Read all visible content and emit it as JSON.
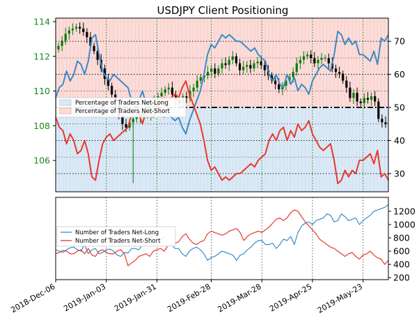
{
  "colors": {
    "long": "#3a8bc8",
    "short": "#e8382c",
    "long_fill": "#dbe9f6",
    "short_fill": "#fbdcd9",
    "price_up": "#0a7d0a",
    "price_down": "#000000",
    "left_axis_text": "#1a8a1a",
    "grid_dot": "#1a8a1a",
    "grid_black": "#000000"
  },
  "chart_data": [
    {
      "type": "line",
      "title": "USDJPY Client Positioning",
      "yaxis_left": {
        "ticks": [
          106,
          108,
          110,
          112,
          114
        ],
        "range": [
          104.2,
          114.2
        ]
      },
      "yaxis_right": {
        "ticks": [
          30,
          40,
          50,
          60,
          70
        ],
        "range": [
          24.5,
          77
        ]
      },
      "x_ticks": [
        "2018-Dec-06",
        "2019-Jan-03",
        "2019-Jan-31",
        "2019-Feb-28",
        "2019-Mar-28",
        "2019-Apr-25",
        "2019-May-23"
      ],
      "reference_line": 50,
      "legend": [
        "Percentage of Traders Net-Long",
        "Percentage of Traders Net-Short"
      ],
      "legend_position": "middle-left",
      "price_candles_close": [
        112.6,
        112.9,
        113.3,
        113.5,
        113.6,
        113.7,
        113.6,
        113.4,
        113.1,
        112.6,
        112.3,
        111.8,
        111.3,
        110.7,
        110.3,
        109.8,
        109.2,
        108.6,
        108.1,
        107.9,
        108.2,
        108.4,
        108.5,
        108.7,
        108.6,
        108.6,
        108.9,
        109.4,
        109.7,
        109.9,
        110.1,
        110.2,
        109.8,
        109.5,
        109.3,
        109.7,
        109.6,
        110.0,
        110.2,
        110.6,
        110.8,
        110.9,
        111.1,
        111.3,
        111.0,
        111.3,
        111.6,
        111.5,
        111.8,
        112.0,
        111.6,
        111.2,
        111.4,
        111.5,
        111.3,
        111.6,
        111.7,
        111.5,
        111.2,
        110.9,
        110.6,
        110.4,
        110.1,
        110.3,
        110.6,
        110.8,
        111.1,
        111.6,
        111.8,
        112.0,
        112.1,
        111.9,
        111.6,
        111.8,
        111.9,
        111.9,
        111.6,
        111.3,
        111.1,
        111.0,
        110.6,
        110.2,
        109.6,
        109.9,
        109.4,
        109.3,
        109.6,
        109.5,
        109.7,
        109.4,
        108.4,
        108.2,
        108.1
      ],
      "series": [
        {
          "name": "Percentage of Traders Net-Long",
          "values": [
            53,
            56,
            57,
            61,
            58,
            60,
            64,
            63,
            60,
            64,
            71,
            72,
            66,
            61,
            59,
            58,
            60,
            59,
            58,
            57,
            56,
            52,
            51,
            52,
            55,
            51,
            52,
            53,
            50,
            48,
            47,
            48,
            47,
            46,
            47,
            44,
            42,
            46,
            49,
            52,
            55,
            60,
            66,
            69,
            68,
            70,
            72,
            71,
            72,
            71,
            70,
            70,
            69,
            68,
            67,
            68,
            66,
            65,
            64,
            60,
            58,
            60,
            57,
            56,
            60,
            57,
            59,
            55,
            57,
            56,
            54,
            58,
            60,
            62,
            63,
            62,
            61,
            66,
            73,
            72,
            69,
            71,
            69,
            70,
            66,
            66,
            65,
            64,
            67,
            63,
            71,
            70,
            72
          ]
        },
        {
          "name": "Percentage of Traders Net-Short",
          "values": [
            47,
            44,
            43,
            39,
            42,
            40,
            36,
            37,
            40,
            36,
            29,
            28,
            34,
            39,
            41,
            42,
            40,
            41,
            42,
            43,
            44,
            48,
            49,
            48,
            45,
            49,
            48,
            47,
            50,
            52,
            53,
            52,
            53,
            54,
            53,
            56,
            58,
            54,
            51,
            48,
            45,
            40,
            34,
            31,
            32,
            30,
            28,
            29,
            28,
            29,
            30,
            30,
            31,
            32,
            33,
            32,
            34,
            35,
            36,
            40,
            42,
            40,
            43,
            44,
            40,
            43,
            41,
            45,
            43,
            44,
            46,
            42,
            40,
            38,
            37,
            38,
            39,
            34,
            27,
            28,
            31,
            29,
            31,
            30,
            34,
            34,
            35,
            36,
            33,
            37,
            29,
            30,
            28
          ]
        }
      ]
    },
    {
      "type": "line",
      "yaxis_right": {
        "ticks": [
          200,
          400,
          600,
          800,
          1000,
          1200
        ],
        "range": [
          170,
          1410
        ]
      },
      "legend": [
        "Number of Traders Net-Long",
        "Number of Traders Net-Short"
      ],
      "legend_position": "middle-left",
      "series": [
        {
          "name": "Number of Traders Net-Long",
          "values": [
            620,
            600,
            580,
            620,
            650,
            660,
            620,
            600,
            700,
            560,
            620,
            640,
            560,
            580,
            620,
            630,
            600,
            540,
            520,
            580,
            570,
            640,
            640,
            620,
            700,
            760,
            820,
            800,
            780,
            760,
            820,
            720,
            700,
            640,
            640,
            560,
            520,
            600,
            640,
            660,
            620,
            560,
            460,
            500,
            520,
            560,
            600,
            580,
            560,
            540,
            460,
            540,
            560,
            620,
            660,
            720,
            760,
            760,
            700,
            700,
            720,
            640,
            700,
            780,
            760,
            820,
            700,
            880,
            980,
            1020,
            1040,
            1000,
            1060,
            1080,
            1100,
            1160,
            1140,
            1040,
            1060,
            1160,
            1120,
            1060,
            1080,
            1100,
            1000,
            1060,
            1100,
            1140,
            1200,
            1220,
            1240,
            1260,
            1300
          ]
        },
        {
          "name": "Number of Traders Net-Short",
          "values": [
            560,
            580,
            610,
            600,
            560,
            560,
            600,
            620,
            560,
            640,
            540,
            520,
            600,
            620,
            580,
            560,
            560,
            600,
            620,
            560,
            380,
            420,
            460,
            520,
            540,
            560,
            520,
            600,
            620,
            640,
            600,
            680,
            700,
            720,
            740,
            820,
            860,
            780,
            720,
            700,
            740,
            760,
            860,
            900,
            880,
            860,
            840,
            860,
            900,
            920,
            940,
            880,
            760,
            820,
            860,
            880,
            900,
            880,
            920,
            960,
            1020,
            1080,
            1100,
            1060,
            1100,
            1180,
            1220,
            1200,
            1120,
            1040,
            980,
            920,
            860,
            780,
            740,
            700,
            660,
            640,
            600,
            560,
            520,
            560,
            580,
            520,
            480,
            540,
            560,
            600,
            540,
            500,
            480,
            400,
            460
          ]
        }
      ]
    }
  ]
}
